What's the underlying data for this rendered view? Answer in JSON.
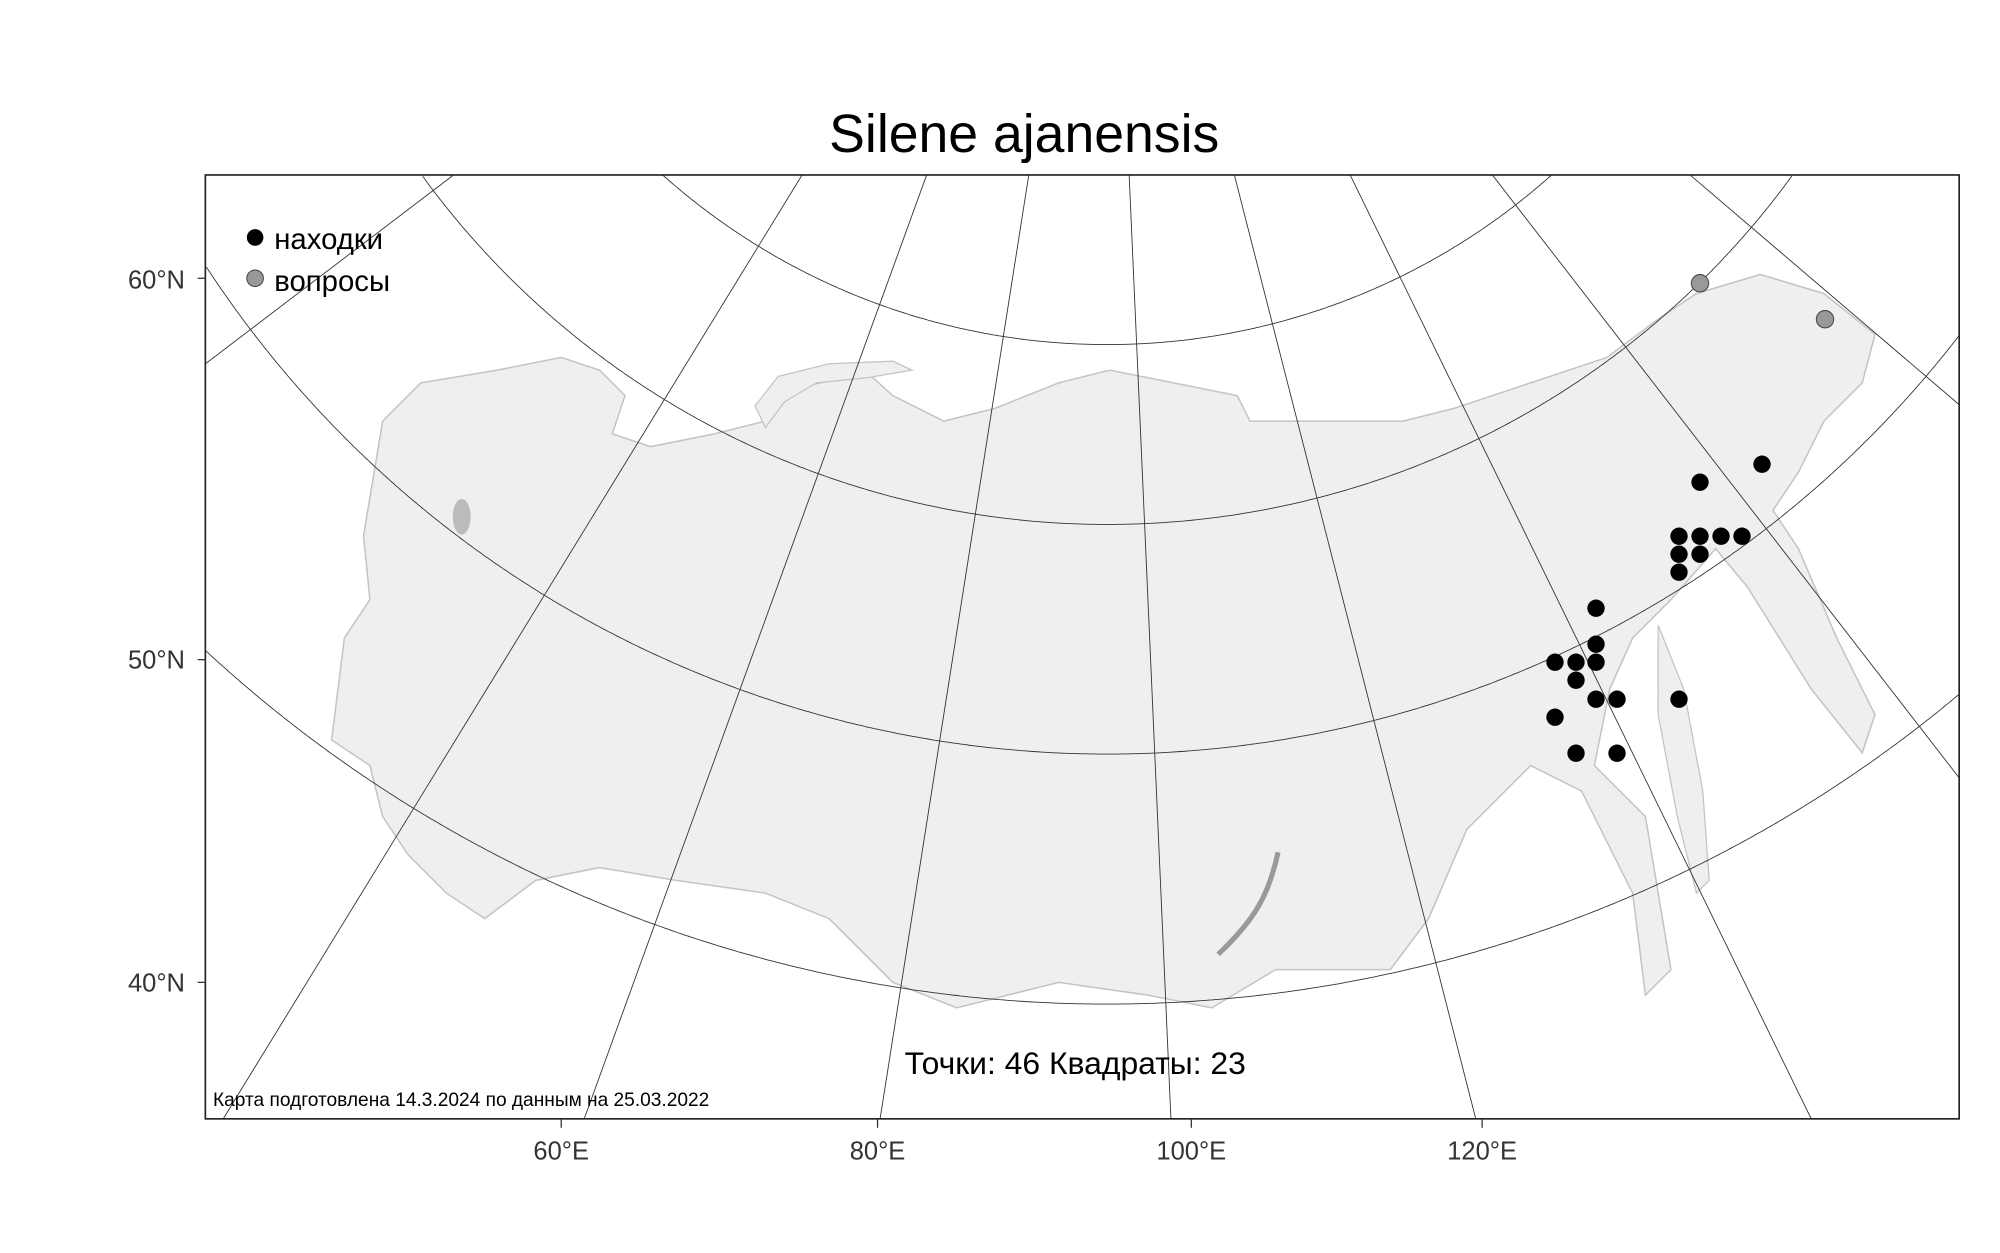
{
  "title": "Silene ajanensis",
  "legend": {
    "found_label": "находки",
    "questionable_label": "вопросы"
  },
  "colors": {
    "found": "#000000",
    "questionable": "#999999",
    "land": "#efefef",
    "land_outline": "#c4c4c4",
    "graticule": "#333333"
  },
  "axes": {
    "lat_labels": [
      "60°N",
      "50°N",
      "40°N"
    ],
    "lon_labels": [
      "60°E",
      "80°E",
      "100°E",
      "120°E"
    ]
  },
  "stats_text": "Точки: 46 Квадраты: 23",
  "footnote": "Карта подготовлена 14.3.2024 по данным на 25.03.2022"
}
